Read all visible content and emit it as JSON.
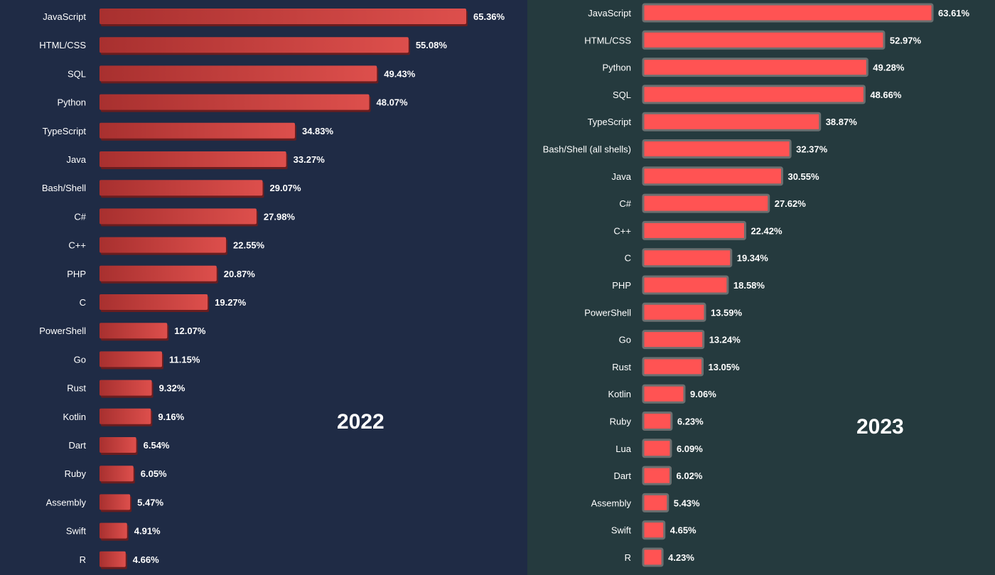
{
  "chart_data": [
    {
      "type": "bar",
      "orientation": "horizontal",
      "title": "2022",
      "categories": [
        "JavaScript",
        "HTML/CSS",
        "SQL",
        "Python",
        "TypeScript",
        "Java",
        "Bash/Shell",
        "C#",
        "C++",
        "PHP",
        "C",
        "PowerShell",
        "Go",
        "Rust",
        "Kotlin",
        "Dart",
        "Ruby",
        "Assembly",
        "Swift",
        "R"
      ],
      "values": [
        65.36,
        55.08,
        49.43,
        48.07,
        34.83,
        33.27,
        29.07,
        27.98,
        22.55,
        20.87,
        19.27,
        12.07,
        11.15,
        9.32,
        9.16,
        6.54,
        6.05,
        5.47,
        4.91,
        4.66
      ],
      "value_labels": [
        "65.36%",
        "55.08%",
        "49.43%",
        "48.07%",
        "34.83%",
        "33.27%",
        "29.07%",
        "27.98%",
        "22.55%",
        "20.87%",
        "19.27%",
        "12.07%",
        "11.15%",
        "9.32%",
        "9.16%",
        "6.54%",
        "6.05%",
        "5.47%",
        "4.91%",
        "4.66%"
      ],
      "unit": "%",
      "bar_color": "#c8403e",
      "background": "#1f2b45",
      "grid": false,
      "legend": "none"
    },
    {
      "type": "bar",
      "orientation": "horizontal",
      "title": "2023",
      "categories": [
        "JavaScript",
        "HTML/CSS",
        "Python",
        "SQL",
        "TypeScript",
        "Bash/Shell (all shells)",
        "Java",
        "C#",
        "C++",
        "C",
        "PHP",
        "PowerShell",
        "Go",
        "Rust",
        "Kotlin",
        "Ruby",
        "Lua",
        "Dart",
        "Assembly",
        "Swift",
        "R"
      ],
      "values": [
        63.61,
        52.97,
        49.28,
        48.66,
        38.87,
        32.37,
        30.55,
        27.62,
        22.42,
        19.34,
        18.58,
        13.59,
        13.24,
        13.05,
        9.06,
        6.23,
        6.09,
        6.02,
        5.43,
        4.65,
        4.23
      ],
      "value_labels": [
        "63.61%",
        "52.97%",
        "49.28%",
        "48.66%",
        "38.87%",
        "32.37%",
        "30.55%",
        "27.62%",
        "22.42%",
        "19.34%",
        "18.58%",
        "13.59%",
        "13.24%",
        "13.05%",
        "9.06%",
        "6.23%",
        "6.09%",
        "6.02%",
        "5.43%",
        "4.65%",
        "4.23%"
      ],
      "unit": "%",
      "bar_color": "#ff5353",
      "bar_border_color": "#6b6f70",
      "background": "#253a3e",
      "grid": false,
      "legend": "none"
    }
  ]
}
